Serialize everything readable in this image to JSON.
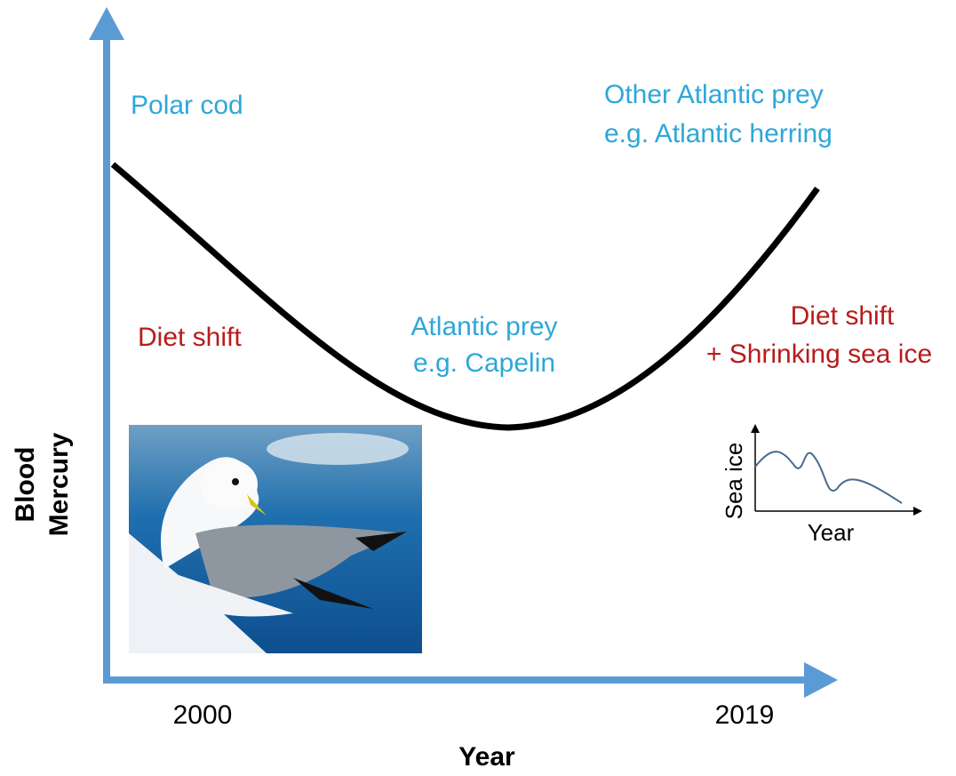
{
  "axes": {
    "y_label": [
      "Blood",
      "Mercury"
    ],
    "x_label": "Year",
    "x_ticks": [
      "2000",
      "2019"
    ]
  },
  "annotations": {
    "polar_cod": "Polar cod",
    "other_prey": [
      "Other Atlantic prey",
      "e.g. Atlantic herring"
    ],
    "diet_shift_left": "Diet shift",
    "atlantic_prey": [
      "Atlantic prey",
      "e.g. Capelin"
    ],
    "diet_shift_right": [
      "Diet shift",
      "+ Shrinking sea ice"
    ]
  },
  "inset": {
    "y_label": "Sea ice",
    "x_label": "Year"
  }
}
